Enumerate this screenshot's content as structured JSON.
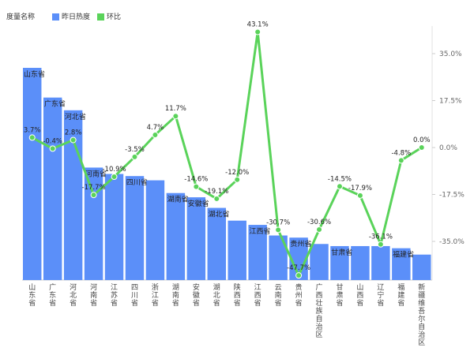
{
  "legend": {
    "title": "度量名称",
    "items": [
      {
        "label": "昨日热度",
        "color": "#5b8ff9"
      },
      {
        "label": "环比",
        "color": "#5ad35a"
      }
    ]
  },
  "chart_data": {
    "type": "bar",
    "categories": [
      "山东省",
      "广东省",
      "河北省",
      "河南省",
      "江苏省",
      "四川省",
      "浙江省",
      "湖南省",
      "安徽省",
      "湖北省",
      "陕西省",
      "江西省",
      "云南省",
      "贵州省",
      "广西壮族自治区",
      "甘肃省",
      "山西省",
      "辽宁省",
      "福建省",
      "新疆维吾尔自治区"
    ],
    "series": [
      {
        "name": "昨日热度",
        "type": "bar",
        "values": [
          100,
          86,
          80,
          53,
          50,
          49,
          47,
          41,
          39,
          34,
          28,
          26,
          21,
          20,
          17,
          16,
          16,
          16,
          15,
          12
        ]
      },
      {
        "name": "环比",
        "type": "line",
        "values": [
          3.7,
          -0.4,
          2.8,
          -17.7,
          -10.9,
          null,
          4.7,
          11.7,
          -14.6,
          -19.1,
          -12.0,
          43.1,
          -30.7,
          -47.7,
          -30.6,
          -14.5,
          -17.9,
          -36.1,
          -4.8,
          0.0
        ]
      }
    ],
    "bar_labels": [
      "山东省",
      "广东省",
      "河北省",
      "河南省",
      "",
      "四川省",
      "",
      "湖南省",
      "安徽省",
      "湖北省",
      "",
      "江西省",
      "",
      "贵州省",
      "",
      "甘肃省",
      "",
      "",
      "福建省",
      ""
    ],
    "line_labels": [
      "3.7%",
      "-0.4%",
      "2.8%",
      "-17.7%",
      "-10.9%",
      "-3.5%",
      "4.7%",
      "11.7%",
      "-14.6%",
      "-19.1%",
      "-12.0%",
      "43.1%",
      "-30.7%",
      "-47.7%",
      "-30.6%",
      "-14.5%",
      "-17.9%",
      "-36.1%",
      "-4.8%",
      "0.0%"
    ],
    "y_right_ticks": [
      "35.0%",
      "17.5%",
      "0.0%",
      "-17.5%",
      "-35.0%"
    ],
    "y_right_values": [
      35,
      17.5,
      0,
      -17.5,
      -35
    ],
    "y_right_range": [
      -50,
      46
    ],
    "y_left_range": [
      0,
      100
    ],
    "xlabel": "",
    "ylabel": "",
    "legend_position": "top-left",
    "grid": false
  }
}
